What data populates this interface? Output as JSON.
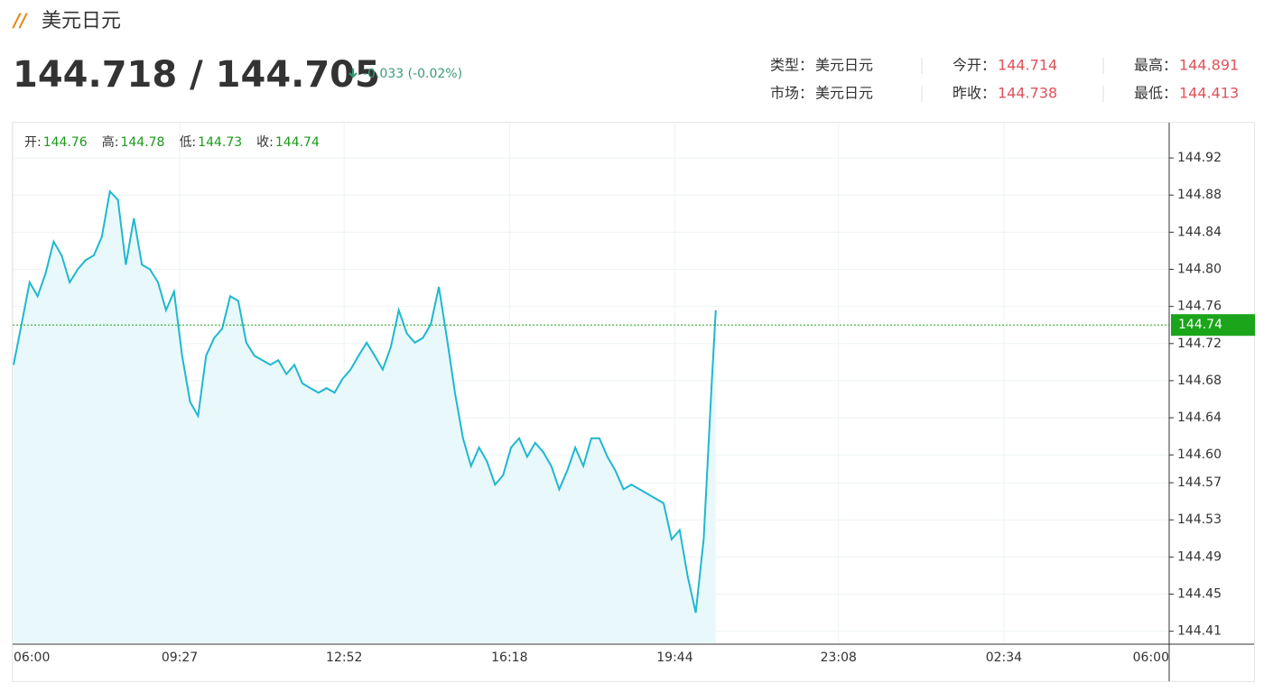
{
  "header": {
    "title": "美元日元",
    "price": "144.718 / 144.705",
    "change": "-0.033 (-0.02%)"
  },
  "info": [
    {
      "label": "类型：",
      "value": "美元日元"
    },
    {
      "label": "市场：",
      "value": "美元日元"
    },
    {
      "label": "今开：",
      "value": 144.714
    },
    {
      "label": "昨收：",
      "value": 144.738
    },
    {
      "label": "最高：",
      "value": 144.891
    },
    {
      "label": "最低：",
      "value": 144.413
    }
  ],
  "ohlc": [
    {
      "label": "开:",
      "value": 144.76
    },
    {
      "label": "高:",
      "value": 144.78
    },
    {
      "label": "低:",
      "value": 144.73
    },
    {
      "label": "收:",
      "value": 144.74
    }
  ],
  "chart_data": {
    "type": "line",
    "color": "#1fb8d0",
    "fill": "#e9f8fa",
    "grid": true,
    "x": [
      0,
      10,
      20,
      30,
      40,
      50,
      60,
      70,
      80,
      90,
      100,
      110,
      120,
      130,
      140,
      150,
      160,
      170,
      180,
      190,
      200,
      210,
      220,
      230,
      240,
      250,
      260,
      270,
      280,
      290,
      300,
      310,
      320,
      330,
      340,
      350,
      360,
      370,
      380,
      390,
      400,
      410,
      420,
      430,
      440,
      450,
      460,
      470,
      480,
      490,
      500,
      510,
      520,
      530,
      540,
      550,
      560,
      570,
      580,
      590,
      600,
      610,
      620,
      630,
      640,
      650,
      660,
      670,
      680,
      690,
      700,
      710,
      720,
      730,
      740,
      750,
      760,
      770,
      780,
      790,
      800,
      810,
      820,
      830,
      840,
      850,
      860,
      870,
      875
    ],
    "values": [
      144.697,
      144.741,
      144.786,
      144.771,
      144.796,
      144.83,
      144.815,
      144.786,
      144.8,
      144.81,
      144.815,
      144.835,
      144.884,
      144.875,
      144.805,
      144.855,
      144.805,
      144.8,
      144.786,
      144.756,
      144.776,
      144.707,
      144.657,
      144.642,
      144.707,
      144.726,
      144.736,
      144.771,
      144.766,
      144.721,
      144.707,
      144.702,
      144.697,
      144.702,
      144.687,
      144.697,
      144.677,
      144.672,
      144.667,
      144.672,
      144.667,
      144.682,
      144.692,
      144.707,
      144.721,
      144.707,
      144.692,
      144.716,
      144.756,
      144.731,
      144.721,
      144.726,
      144.741,
      144.781,
      144.726,
      144.667,
      144.618,
      144.588,
      144.608,
      144.593,
      144.568,
      144.578,
      144.608,
      144.618,
      144.598,
      144.613,
      144.603,
      144.588,
      144.563,
      144.583,
      144.608,
      144.588,
      144.618,
      144.618,
      144.598,
      144.583,
      144.563,
      144.568,
      144.563,
      144.558,
      144.553,
      144.548,
      144.509,
      144.519,
      144.469,
      144.43,
      144.509,
      144.677,
      144.756
    ],
    "xlim": [
      0,
      1440
    ],
    "xticks": [
      {
        "value": 0,
        "label": "06:00"
      },
      {
        "value": 207,
        "label": "09:27"
      },
      {
        "value": 412,
        "label": "12:52"
      },
      {
        "value": 618,
        "label": "16:18"
      },
      {
        "value": 824,
        "label": "19:44"
      },
      {
        "value": 1028,
        "label": "23:08"
      },
      {
        "value": 1234,
        "label": "02:34"
      },
      {
        "value": 1440,
        "label": "06:00"
      }
    ],
    "ylim": [
      144.397,
      144.958
    ],
    "yticks": [
      144.41,
      144.45,
      144.49,
      144.53,
      144.57,
      {
        "value": 144.6,
        "label": "144.60"
      },
      144.64,
      144.68,
      144.72,
      144.76,
      {
        "value": 144.8,
        "label": "144.80"
      },
      144.84,
      144.88,
      144.92
    ],
    "current": 144.74,
    "current_color": "#1aa51a"
  }
}
